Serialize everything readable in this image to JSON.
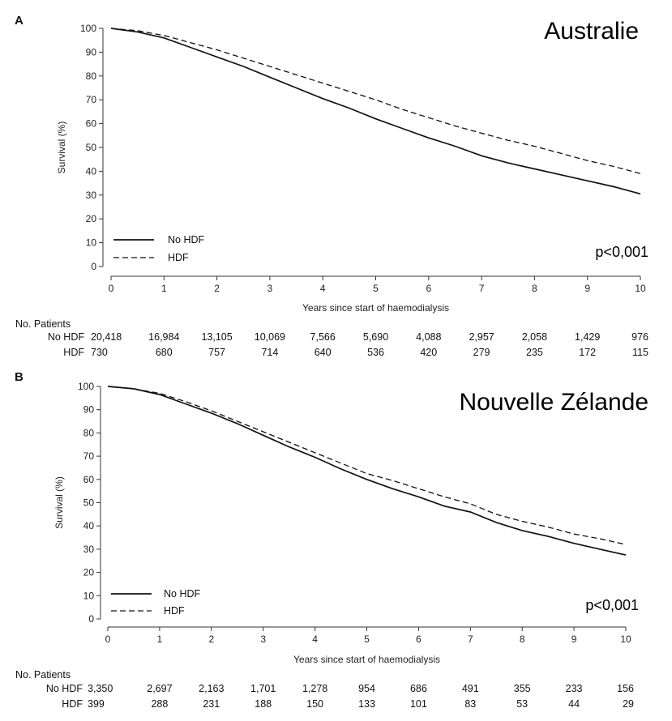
{
  "chart_data": [
    {
      "type": "line",
      "panel_letter": "A",
      "title": "Australie",
      "ylabel": "Survival (%)",
      "xlabel": "Years since start of haemodialysis",
      "xlim": [
        0,
        10
      ],
      "ylim": [
        0,
        100
      ],
      "xticks": [
        0,
        1,
        2,
        3,
        4,
        5,
        6,
        7,
        8,
        9,
        10
      ],
      "yticks": [
        0,
        10,
        20,
        30,
        40,
        50,
        60,
        70,
        80,
        90,
        100
      ],
      "grid": false,
      "legend_position": "bottom-left",
      "annotation": "p<0,001",
      "series": [
        {
          "name": "No HDF",
          "style": "solid",
          "x": [
            0,
            0.5,
            1,
            1.5,
            2,
            2.5,
            3,
            3.5,
            4,
            4.5,
            5,
            5.5,
            6,
            6.5,
            7,
            7.5,
            8,
            8.5,
            9,
            9.5,
            10
          ],
          "y": [
            100,
            98.5,
            96,
            92,
            88,
            84,
            79.5,
            75,
            70.5,
            66.5,
            62,
            58,
            54,
            50.5,
            46.5,
            43.5,
            41,
            38.5,
            36,
            33.5,
            30.5
          ]
        },
        {
          "name": "HDF",
          "style": "dashed",
          "x": [
            0,
            0.5,
            1,
            1.5,
            2,
            2.5,
            3,
            3.5,
            4,
            4.5,
            5,
            5.5,
            6,
            6.5,
            7,
            7.5,
            8,
            8.5,
            9,
            9.5,
            10
          ],
          "y": [
            100,
            99,
            97,
            94,
            91,
            87.5,
            84,
            80.5,
            77,
            73.5,
            70,
            66,
            62.5,
            59,
            56,
            53,
            50.5,
            47.5,
            44.5,
            42,
            39
          ]
        }
      ],
      "risk_table": {
        "header": "No. Patients",
        "rows": [
          {
            "label": "No HDF",
            "values": [
              "20,418",
              "16,984",
              "13,105",
              "10,069",
              "7,566",
              "5,690",
              "4,088",
              "2,957",
              "2,058",
              "1,429",
              "976"
            ]
          },
          {
            "label": "HDF",
            "values": [
              "730",
              "680",
              "757",
              "714",
              "640",
              "536",
              "420",
              "279",
              "235",
              "172",
              "115"
            ]
          }
        ]
      }
    },
    {
      "type": "line",
      "panel_letter": "B",
      "title": "Nouvelle Zélande",
      "ylabel": "Survival (%)",
      "xlabel": "Years since start of haemodialysis",
      "xlim": [
        0,
        10
      ],
      "ylim": [
        0,
        100
      ],
      "xticks": [
        0,
        1,
        2,
        3,
        4,
        5,
        6,
        7,
        8,
        9,
        10
      ],
      "yticks": [
        0,
        10,
        20,
        30,
        40,
        50,
        60,
        70,
        80,
        90,
        100
      ],
      "grid": false,
      "legend_position": "bottom-left",
      "annotation": "p<0,001",
      "series": [
        {
          "name": "No HDF",
          "style": "solid",
          "x": [
            0,
            0.5,
            1,
            1.5,
            2,
            2.5,
            3,
            3.5,
            4,
            4.5,
            5,
            5.5,
            6,
            6.5,
            7,
            7.5,
            8,
            8.5,
            9,
            9.5,
            10
          ],
          "y": [
            100,
            99,
            96.5,
            92.5,
            88.5,
            84,
            79,
            74,
            69.5,
            64.5,
            60,
            56,
            52.5,
            48.5,
            46,
            41.5,
            38,
            35.5,
            32.5,
            30,
            27.5
          ]
        },
        {
          "name": "HDF",
          "style": "dashed",
          "x": [
            0,
            0.5,
            1,
            1.5,
            2,
            2.5,
            3,
            3.5,
            4,
            4.5,
            5,
            5.5,
            6,
            6.5,
            7,
            7.5,
            8,
            8.5,
            9,
            9.5,
            10
          ],
          "y": [
            100,
            99,
            97,
            93.5,
            89.5,
            85,
            80.5,
            76,
            71.5,
            67,
            62.5,
            59.5,
            56,
            52.5,
            49.5,
            45,
            42,
            39.5,
            36.5,
            34.5,
            32
          ]
        }
      ],
      "risk_table": {
        "header": "No. Patients",
        "rows": [
          {
            "label": "No HDF",
            "values": [
              "3,350",
              "2,697",
              "2,163",
              "1,701",
              "1,278",
              "954",
              "686",
              "491",
              "355",
              "233",
              "156"
            ]
          },
          {
            "label": "HDF",
            "values": [
              "399",
              "288",
              "231",
              "188",
              "150",
              "133",
              "101",
              "83",
              "53",
              "44",
              "29"
            ]
          }
        ]
      }
    }
  ]
}
